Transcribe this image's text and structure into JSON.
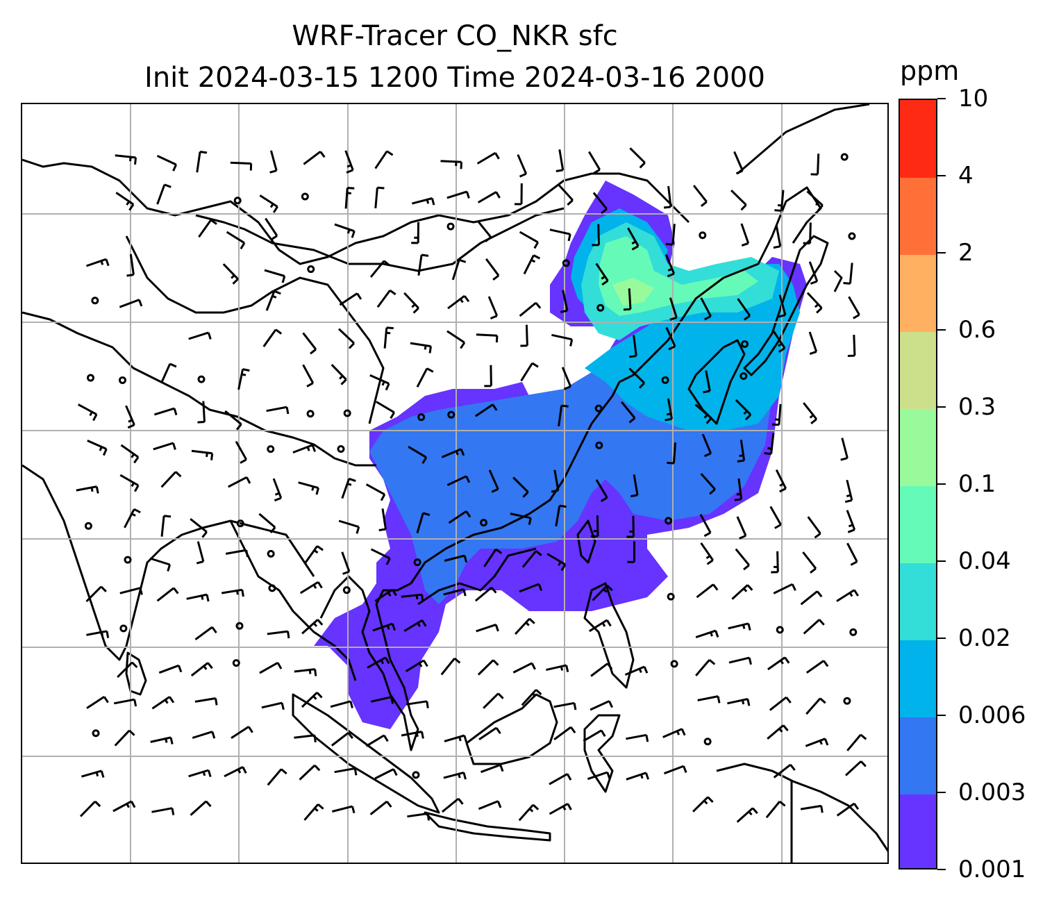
{
  "title_line1": "WRF-Tracer CO_NKR sfc",
  "title_line2": "Init 2024-03-15 1200 Time 2024-03-16 2000",
  "units": "ppm",
  "colorbar": {
    "levels": [
      "0.001",
      "0.003",
      "0.006",
      "0.02",
      "0.04",
      "0.1",
      "0.3",
      "0.6",
      "2",
      "4",
      "10"
    ],
    "colors": [
      "#6633ff",
      "#3377f2",
      "#00b3ea",
      "#33ddd8",
      "#66fab8",
      "#99fa9c",
      "#cce08c",
      "#ffb060",
      "#ff7038",
      "#ff2a14"
    ]
  },
  "map": {
    "coastline_color": "#000000",
    "grid_color": "#b0b0b0",
    "grid_lines": "on",
    "wind_barbs": "on"
  }
}
